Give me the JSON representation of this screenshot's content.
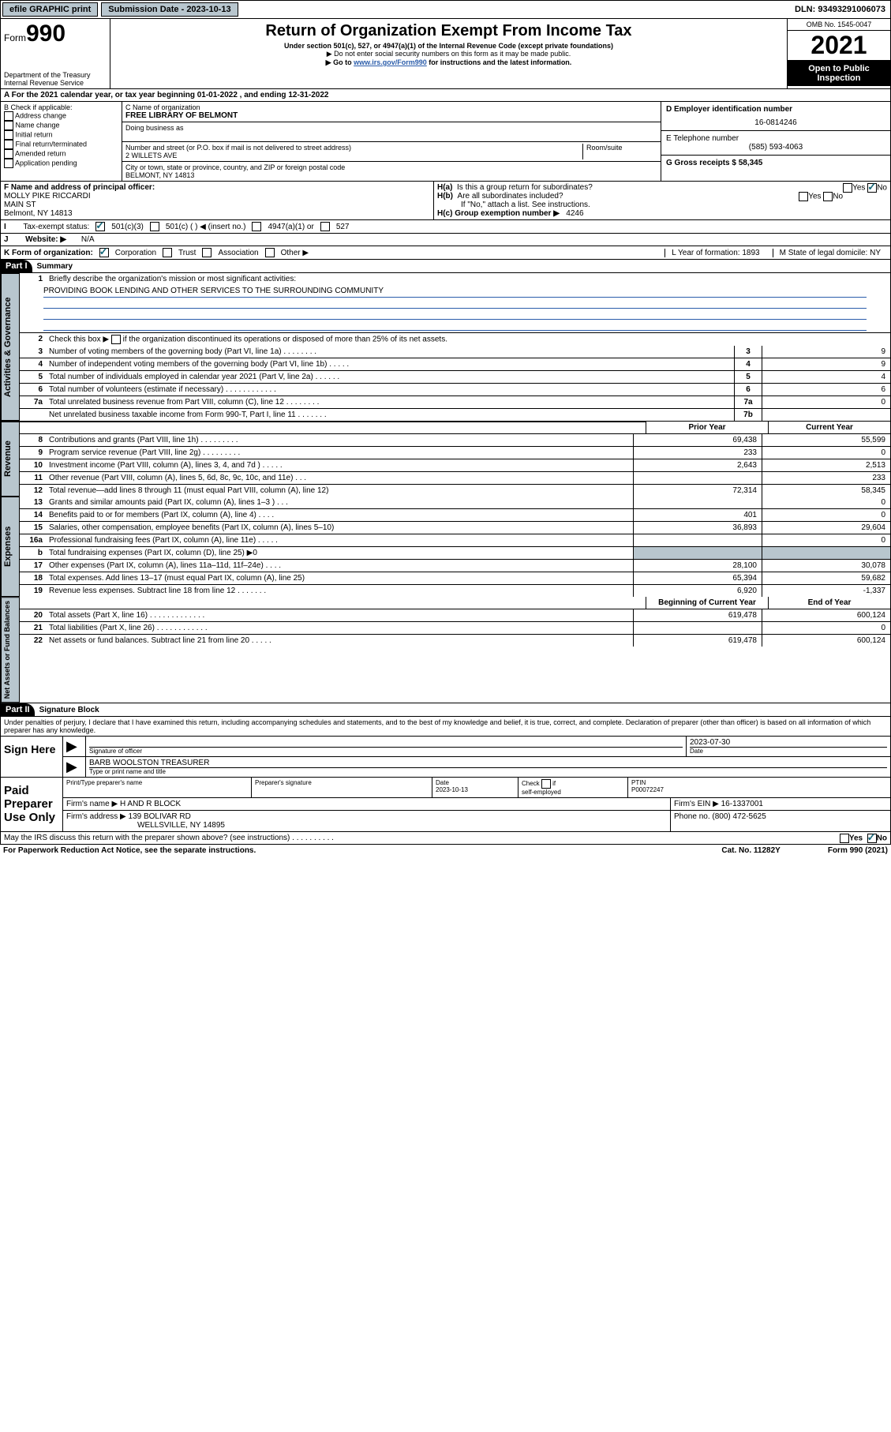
{
  "topbar": {
    "efile": "efile GRAPHIC print",
    "submission_label": "Submission Date - 2023-10-13",
    "dln": "DLN: 93493291006073"
  },
  "header": {
    "form_word": "Form",
    "form_num": "990",
    "dept": "Department of the Treasury",
    "irs": "Internal Revenue Service",
    "title": "Return of Organization Exempt From Income Tax",
    "sub1": "Under section 501(c), 527, or 4947(a)(1) of the Internal Revenue Code (except private foundations)",
    "sub2": "▶ Do not enter social security numbers on this form as it may be made public.",
    "sub3_pre": "▶ Go to ",
    "sub3_link": "www.irs.gov/Form990",
    "sub3_post": " for instructions and the latest information.",
    "omb": "OMB No. 1545-0047",
    "year": "2021",
    "open": "Open to Public Inspection"
  },
  "rowA": "A For the 2021 calendar year, or tax year beginning 01-01-2022   , and ending 12-31-2022",
  "colB": {
    "head": "B Check if applicable:",
    "items": [
      "Address change",
      "Name change",
      "Initial return",
      "Final return/terminated",
      "Amended return",
      "Application pending"
    ]
  },
  "colC": {
    "c_label": "C Name of organization",
    "c_name": "FREE LIBRARY OF BELMONT",
    "dba": "Doing business as",
    "addr_label": "Number and street (or P.O. box if mail is not delivered to street address)",
    "room": "Room/suite",
    "addr": "2 WILLETS AVE",
    "city_label": "City or town, state or province, country, and ZIP or foreign postal code",
    "city": "BELMONT, NY  14813"
  },
  "colDE": {
    "d_label": "D Employer identification number",
    "d_val": "16-0814246",
    "e_label": "E Telephone number",
    "e_val": "(585) 593-4063",
    "g_label": "G Gross receipts $ 58,345"
  },
  "f": {
    "label": "F Name and address of principal officer:",
    "name": "MOLLY PIKE RICCARDI",
    "street": "MAIN ST",
    "city": "Belmont, NY  14813"
  },
  "h": {
    "a_label": "H(a)  Is this a group return for subordinates?",
    "b_label": "H(b)  Are all subordinates included?",
    "b_note": "If \"No,\" attach a list. See instructions.",
    "c_label": "H(c)  Group exemption number ▶",
    "c_val": "4246",
    "yes": "Yes",
    "no": "No"
  },
  "i": {
    "label": "Tax-exempt status:",
    "o1": "501(c)(3)",
    "o2": "501(c) (  ) ◀ (insert no.)",
    "o3": "4947(a)(1) or",
    "o4": "527"
  },
  "j": {
    "label": "Website: ▶",
    "val": "N/A"
  },
  "k": {
    "label": "K Form of organization:",
    "o1": "Corporation",
    "o2": "Trust",
    "o3": "Association",
    "o4": "Other ▶"
  },
  "l": {
    "label": "L Year of formation: 1893"
  },
  "m": {
    "label": "M State of legal domicile: NY"
  },
  "part1": {
    "hdr": "Part I",
    "title": "Summary",
    "q1": "Briefly describe the organization's mission or most significant activities:",
    "mission": "PROVIDING BOOK LENDING AND OTHER SERVICES TO THE SURROUNDING COMMUNITY",
    "q2": "Check this box ▶        if the organization discontinued its operations or disposed of more than 25% of its net assets.",
    "tab_gov": "Activities & Governance",
    "tab_rev": "Revenue",
    "tab_exp": "Expenses",
    "tab_net": "Net Assets or Fund Balances",
    "lines_gov": [
      {
        "n": "3",
        "d": "Number of voting members of the governing body (Part VI, line 1a)  .    .    .    .    .    .    .    .",
        "b": "3",
        "v": "9"
      },
      {
        "n": "4",
        "d": "Number of independent voting members of the governing body (Part VI, line 1b)  .    .    .    .    .",
        "b": "4",
        "v": "9"
      },
      {
        "n": "5",
        "d": "Total number of individuals employed in calendar year 2021 (Part V, line 2a)  .    .    .    .    .    .",
        "b": "5",
        "v": "4"
      },
      {
        "n": "6",
        "d": "Total number of volunteers (estimate if necessary)  .    .    .    .    .    .    .    .    .    .    .    .",
        "b": "6",
        "v": "6"
      },
      {
        "n": "7a",
        "d": "Total unrelated business revenue from Part VIII, column (C), line 12  .    .    .    .    .    .    .    .",
        "b": "7a",
        "v": "0"
      },
      {
        "n": "",
        "d": "Net unrelated business taxable income from Form 990-T, Part I, line 11  .    .    .    .    .    .    .",
        "b": "7b",
        "v": ""
      }
    ],
    "head_prior": "Prior Year",
    "head_curr": "Current Year",
    "lines_rev": [
      {
        "n": "8",
        "d": "Contributions and grants (Part VIII, line 1h)  .    .    .    .    .    .    .    .    .",
        "p": "69,438",
        "c": "55,599"
      },
      {
        "n": "9",
        "d": "Program service revenue (Part VIII, line 2g)  .    .    .    .    .    .    .    .    .",
        "p": "233",
        "c": "0"
      },
      {
        "n": "10",
        "d": "Investment income (Part VIII, column (A), lines 3, 4, and 7d )  .    .    .    .    .",
        "p": "2,643",
        "c": "2,513"
      },
      {
        "n": "11",
        "d": "Other revenue (Part VIII, column (A), lines 5, 6d, 8c, 9c, 10c, and 11e)  .    .    .",
        "p": "",
        "c": "233"
      },
      {
        "n": "12",
        "d": "Total revenue—add lines 8 through 11 (must equal Part VIII, column (A), line 12)",
        "p": "72,314",
        "c": "58,345"
      }
    ],
    "lines_exp": [
      {
        "n": "13",
        "d": "Grants and similar amounts paid (Part IX, column (A), lines 1–3 )  .    .    .",
        "p": "",
        "c": "0"
      },
      {
        "n": "14",
        "d": "Benefits paid to or for members (Part IX, column (A), line 4)  .    .    .    .",
        "p": "401",
        "c": "0"
      },
      {
        "n": "15",
        "d": "Salaries, other compensation, employee benefits (Part IX, column (A), lines 5–10)",
        "p": "36,893",
        "c": "29,604"
      },
      {
        "n": "16a",
        "d": "Professional fundraising fees (Part IX, column (A), line 11e)  .    .    .    .    .",
        "p": "",
        "c": "0"
      },
      {
        "n": "b",
        "d": "Total fundraising expenses (Part IX, column (D), line 25) ▶0",
        "p": "shade",
        "c": "shade"
      },
      {
        "n": "17",
        "d": "Other expenses (Part IX, column (A), lines 11a–11d, 11f–24e)  .    .    .    .",
        "p": "28,100",
        "c": "30,078"
      },
      {
        "n": "18",
        "d": "Total expenses. Add lines 13–17 (must equal Part IX, column (A), line 25)",
        "p": "65,394",
        "c": "59,682"
      },
      {
        "n": "19",
        "d": "Revenue less expenses. Subtract line 18 from line 12  .    .    .    .    .    .    .",
        "p": "6,920",
        "c": "-1,337"
      }
    ],
    "head_beg": "Beginning of Current Year",
    "head_end": "End of Year",
    "lines_net": [
      {
        "n": "20",
        "d": "Total assets (Part X, line 16)  .    .    .    .    .    .    .    .    .    .    .    .    .",
        "p": "619,478",
        "c": "600,124"
      },
      {
        "n": "21",
        "d": "Total liabilities (Part X, line 26)  .    .    .    .    .    .    .    .    .    .    .    .",
        "p": "",
        "c": "0"
      },
      {
        "n": "22",
        "d": "Net assets or fund balances. Subtract line 21 from line 20  .    .    .    .    .",
        "p": "619,478",
        "c": "600,124"
      }
    ]
  },
  "part2": {
    "hdr": "Part II",
    "title": "Signature Block",
    "decl": "Under penalties of perjury, I declare that I have examined this return, including accompanying schedules and statements, and to the best of my knowledge and belief, it is true, correct, and complete. Declaration of preparer (other than officer) is based on all information of which preparer has any knowledge.",
    "sign_here": "Sign Here",
    "sig_officer_lbl": "Signature of officer",
    "sig_date": "2023-07-30",
    "date_lbl": "Date",
    "name_title": "BARB WOOLSTON  TREASURER",
    "name_title_lbl": "Type or print name and title",
    "paid": "Paid Preparer Use Only",
    "pt_name_lbl": "Print/Type preparer's name",
    "pt_sig_lbl": "Preparer's signature",
    "pt_date_lbl": "Date",
    "pt_date": "2023-10-13",
    "pt_check": "Check         if self-employed",
    "ptin_lbl": "PTIN",
    "ptin": "P00072247",
    "firm_name_lbl": "Firm's name    ▶",
    "firm_name": "H AND R BLOCK",
    "firm_ein_lbl": "Firm's EIN ▶",
    "firm_ein": "16-1337001",
    "firm_addr_lbl": "Firm's address ▶",
    "firm_addr1": "139 BOLIVAR RD",
    "firm_addr2": "WELLSVILLE, NY  14895",
    "phone_lbl": "Phone no.",
    "phone": "(800) 472-5625",
    "discuss": "May the IRS discuss this return with the preparer shown above? (see instructions)  .    .    .    .    .    .    .    .    .    ."
  },
  "footer": {
    "pra": "For Paperwork Reduction Act Notice, see the separate instructions.",
    "cat": "Cat. No. 11282Y",
    "form": "Form 990 (2021)"
  }
}
